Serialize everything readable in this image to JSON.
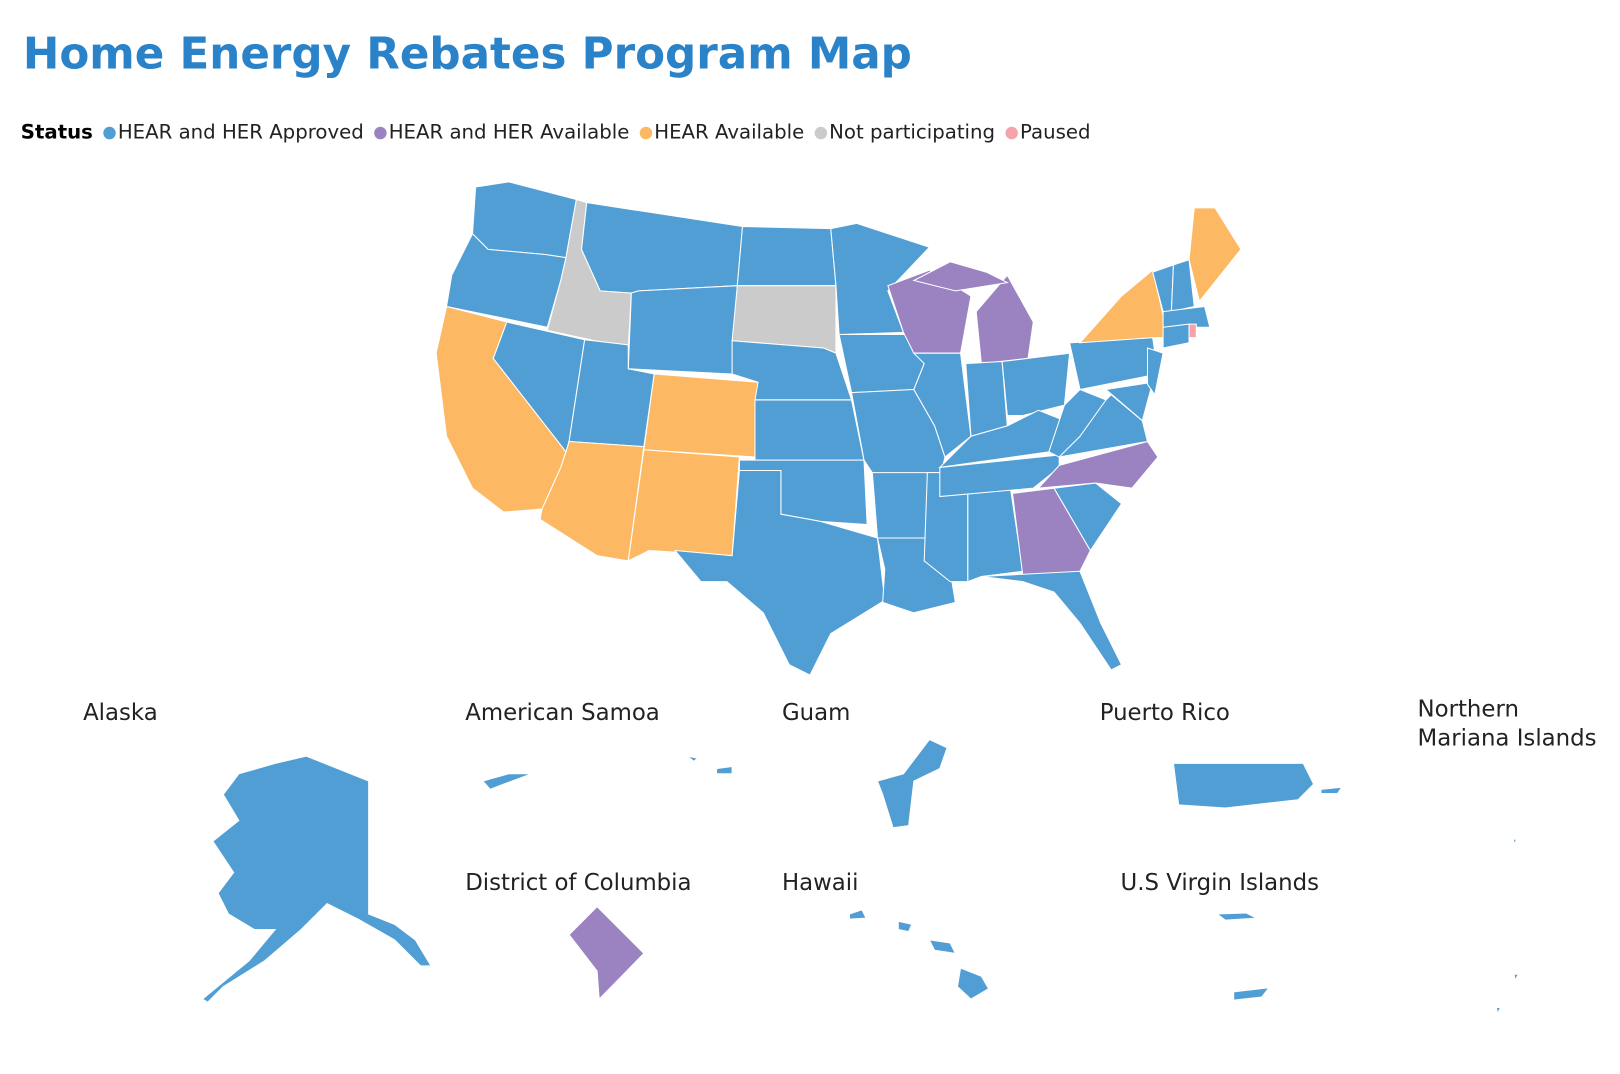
{
  "title": "Home Energy Rebates Program Map",
  "legend": {
    "title": "Status",
    "items": [
      {
        "label": "HEAR and HER Approved",
        "color": "#519ed4"
      },
      {
        "label": "HEAR and HER Available",
        "color": "#9b82c0"
      },
      {
        "label": "HEAR Available",
        "color": "#fdb863"
      },
      {
        "label": "Not participating",
        "color": "#cbcbcb"
      },
      {
        "label": "Paused",
        "color": "#f4a3ab"
      }
    ]
  },
  "insets": [
    {
      "label": "Alaska"
    },
    {
      "label": "American Samoa"
    },
    {
      "label": "Guam"
    },
    {
      "label": "Puerto Rico"
    },
    {
      "label": "Northern Mariana Islands"
    },
    {
      "label": "District of Columbia"
    },
    {
      "label": "Hawaii"
    },
    {
      "label": "U.S Virgin Islands"
    }
  ]
}
